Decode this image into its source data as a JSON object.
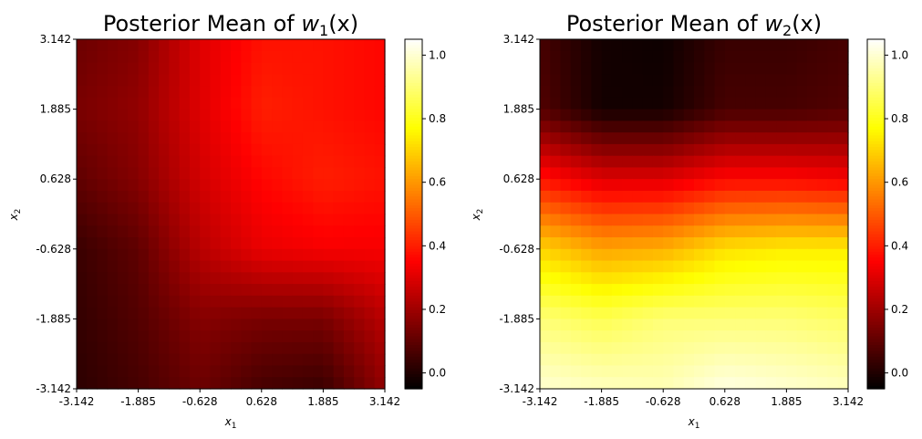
{
  "chart_data": [
    {
      "type": "heatmap",
      "title_main": "Posterior Mean of ",
      "title_var": "w",
      "title_sub": "1",
      "title_tail": "(x)",
      "xlabel_var": "x",
      "xlabel_sub": "1",
      "ylabel_var": "x",
      "ylabel_sub": "2",
      "x_ticks": [
        "-3.142",
        "-1.885",
        "-0.628",
        "0.628",
        "1.885",
        "3.142"
      ],
      "y_ticks": [
        "-3.142",
        "-1.885",
        "-0.628",
        "0.628",
        "1.885",
        "3.142"
      ],
      "xlim": [
        -3.142,
        3.142
      ],
      "ylim": [
        -3.142,
        3.142
      ],
      "colormap": "hot",
      "vmin": -0.05,
      "vmax": 1.05,
      "colorbar_ticks": [
        "0.0",
        "0.2",
        "0.4",
        "0.6",
        "0.8",
        "1.0"
      ],
      "colorbar_tick_values": [
        0.0,
        0.2,
        0.4,
        0.6,
        0.8,
        1.0
      ],
      "grid_x_values": [
        -3.142,
        -1.885,
        -0.628,
        0.628,
        1.885,
        3.142
      ],
      "grid_y_values": [
        3.142,
        1.885,
        0.628,
        -0.628,
        -1.885,
        -3.142
      ],
      "z_values": [
        [
          0.12,
          0.16,
          0.3,
          0.38,
          0.38,
          0.36
        ],
        [
          0.14,
          0.18,
          0.3,
          0.4,
          0.38,
          0.36
        ],
        [
          0.1,
          0.16,
          0.28,
          0.36,
          0.4,
          0.38
        ],
        [
          0.04,
          0.1,
          0.24,
          0.32,
          0.34,
          0.34
        ],
        [
          0.03,
          0.08,
          0.16,
          0.14,
          0.14,
          0.24
        ],
        [
          0.02,
          0.06,
          0.12,
          0.06,
          0.04,
          0.18
        ]
      ]
    },
    {
      "type": "heatmap",
      "title_main": "Posterior Mean of ",
      "title_var": "w",
      "title_sub": "2",
      "title_tail": "(x)",
      "xlabel_var": "x",
      "xlabel_sub": "1",
      "ylabel_var": "x",
      "ylabel_sub": "2",
      "x_ticks": [
        "-3.142",
        "-1.885",
        "-0.628",
        "0.628",
        "1.885",
        "3.142"
      ],
      "y_ticks": [
        "-3.142",
        "-1.885",
        "-0.628",
        "0.628",
        "1.885",
        "3.142"
      ],
      "xlim": [
        -3.142,
        3.142
      ],
      "ylim": [
        -3.142,
        3.142
      ],
      "colormap": "hot",
      "vmin": -0.05,
      "vmax": 1.05,
      "colorbar_ticks": [
        "0.0",
        "0.2",
        "0.4",
        "0.6",
        "0.8",
        "1.0"
      ],
      "colorbar_tick_values": [
        0.0,
        0.2,
        0.4,
        0.6,
        0.8,
        1.0
      ],
      "grid_x_values": [
        -3.142,
        -1.885,
        -0.628,
        0.628,
        1.885,
        3.142
      ],
      "grid_y_values": [
        3.142,
        1.885,
        0.628,
        -0.628,
        -1.885,
        -3.142
      ],
      "z_values": [
        [
          0.06,
          -0.02,
          -0.03,
          0.04,
          0.04,
          0.06
        ],
        [
          0.08,
          -0.02,
          -0.02,
          0.06,
          0.06,
          0.08
        ],
        [
          0.38,
          0.3,
          0.3,
          0.36,
          0.36,
          0.34
        ],
        [
          0.7,
          0.62,
          0.64,
          0.72,
          0.74,
          0.74
        ],
        [
          0.9,
          0.86,
          0.9,
          0.9,
          0.9,
          0.88
        ],
        [
          1.0,
          0.98,
          0.97,
          1.02,
          1.0,
          0.98
        ]
      ]
    }
  ]
}
